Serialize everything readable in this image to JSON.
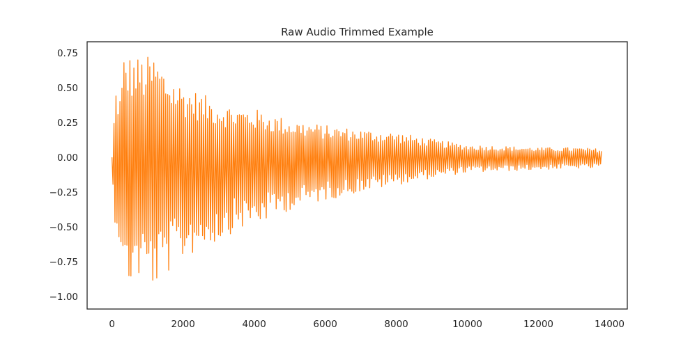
{
  "chart_data": {
    "type": "line",
    "title": "Raw Audio Trimmed Example",
    "xlabel": "",
    "ylabel": "",
    "xlim": [
      -700,
      14500
    ],
    "ylim": [
      -1.09,
      0.83
    ],
    "x_ticks": [
      0,
      2000,
      4000,
      6000,
      8000,
      10000,
      12000,
      14000
    ],
    "x_tick_labels": [
      "0",
      "2000",
      "4000",
      "6000",
      "8000",
      "10000",
      "12000",
      "14000"
    ],
    "y_ticks": [
      0.75,
      0.5,
      0.25,
      0.0,
      -0.25,
      -0.5,
      -0.75,
      -1.0
    ],
    "y_tick_labels": [
      "0.75",
      "0.50",
      "0.25",
      "0.00",
      "−0.25",
      "−0.50",
      "−0.75",
      "−1.00"
    ],
    "grid": false,
    "line_color": "#ff7f0e",
    "series": [
      {
        "x_start": 0,
        "x_end": 13800,
        "envelope": {
          "x": [
            0,
            100,
            250,
            330,
            600,
            900,
            1200,
            1600,
            2000,
            2500,
            3000,
            3500,
            4000,
            5000,
            6000,
            7000,
            8000,
            9000,
            10000,
            11000,
            12000,
            13000,
            13800
          ],
          "upper": [
            0.0,
            0.52,
            0.45,
            0.75,
            0.73,
            0.72,
            0.74,
            0.6,
            0.52,
            0.46,
            0.4,
            0.36,
            0.35,
            0.27,
            0.23,
            0.2,
            0.18,
            0.13,
            0.09,
            0.08,
            0.07,
            0.07,
            0.06
          ],
          "lower": [
            -0.19,
            -0.52,
            -0.65,
            -1.0,
            -0.89,
            -0.87,
            -0.95,
            -0.83,
            -0.74,
            -0.66,
            -0.61,
            -0.52,
            -0.5,
            -0.38,
            -0.31,
            -0.25,
            -0.2,
            -0.15,
            -0.11,
            -0.1,
            -0.09,
            -0.08,
            -0.08
          ]
        }
      }
    ]
  }
}
